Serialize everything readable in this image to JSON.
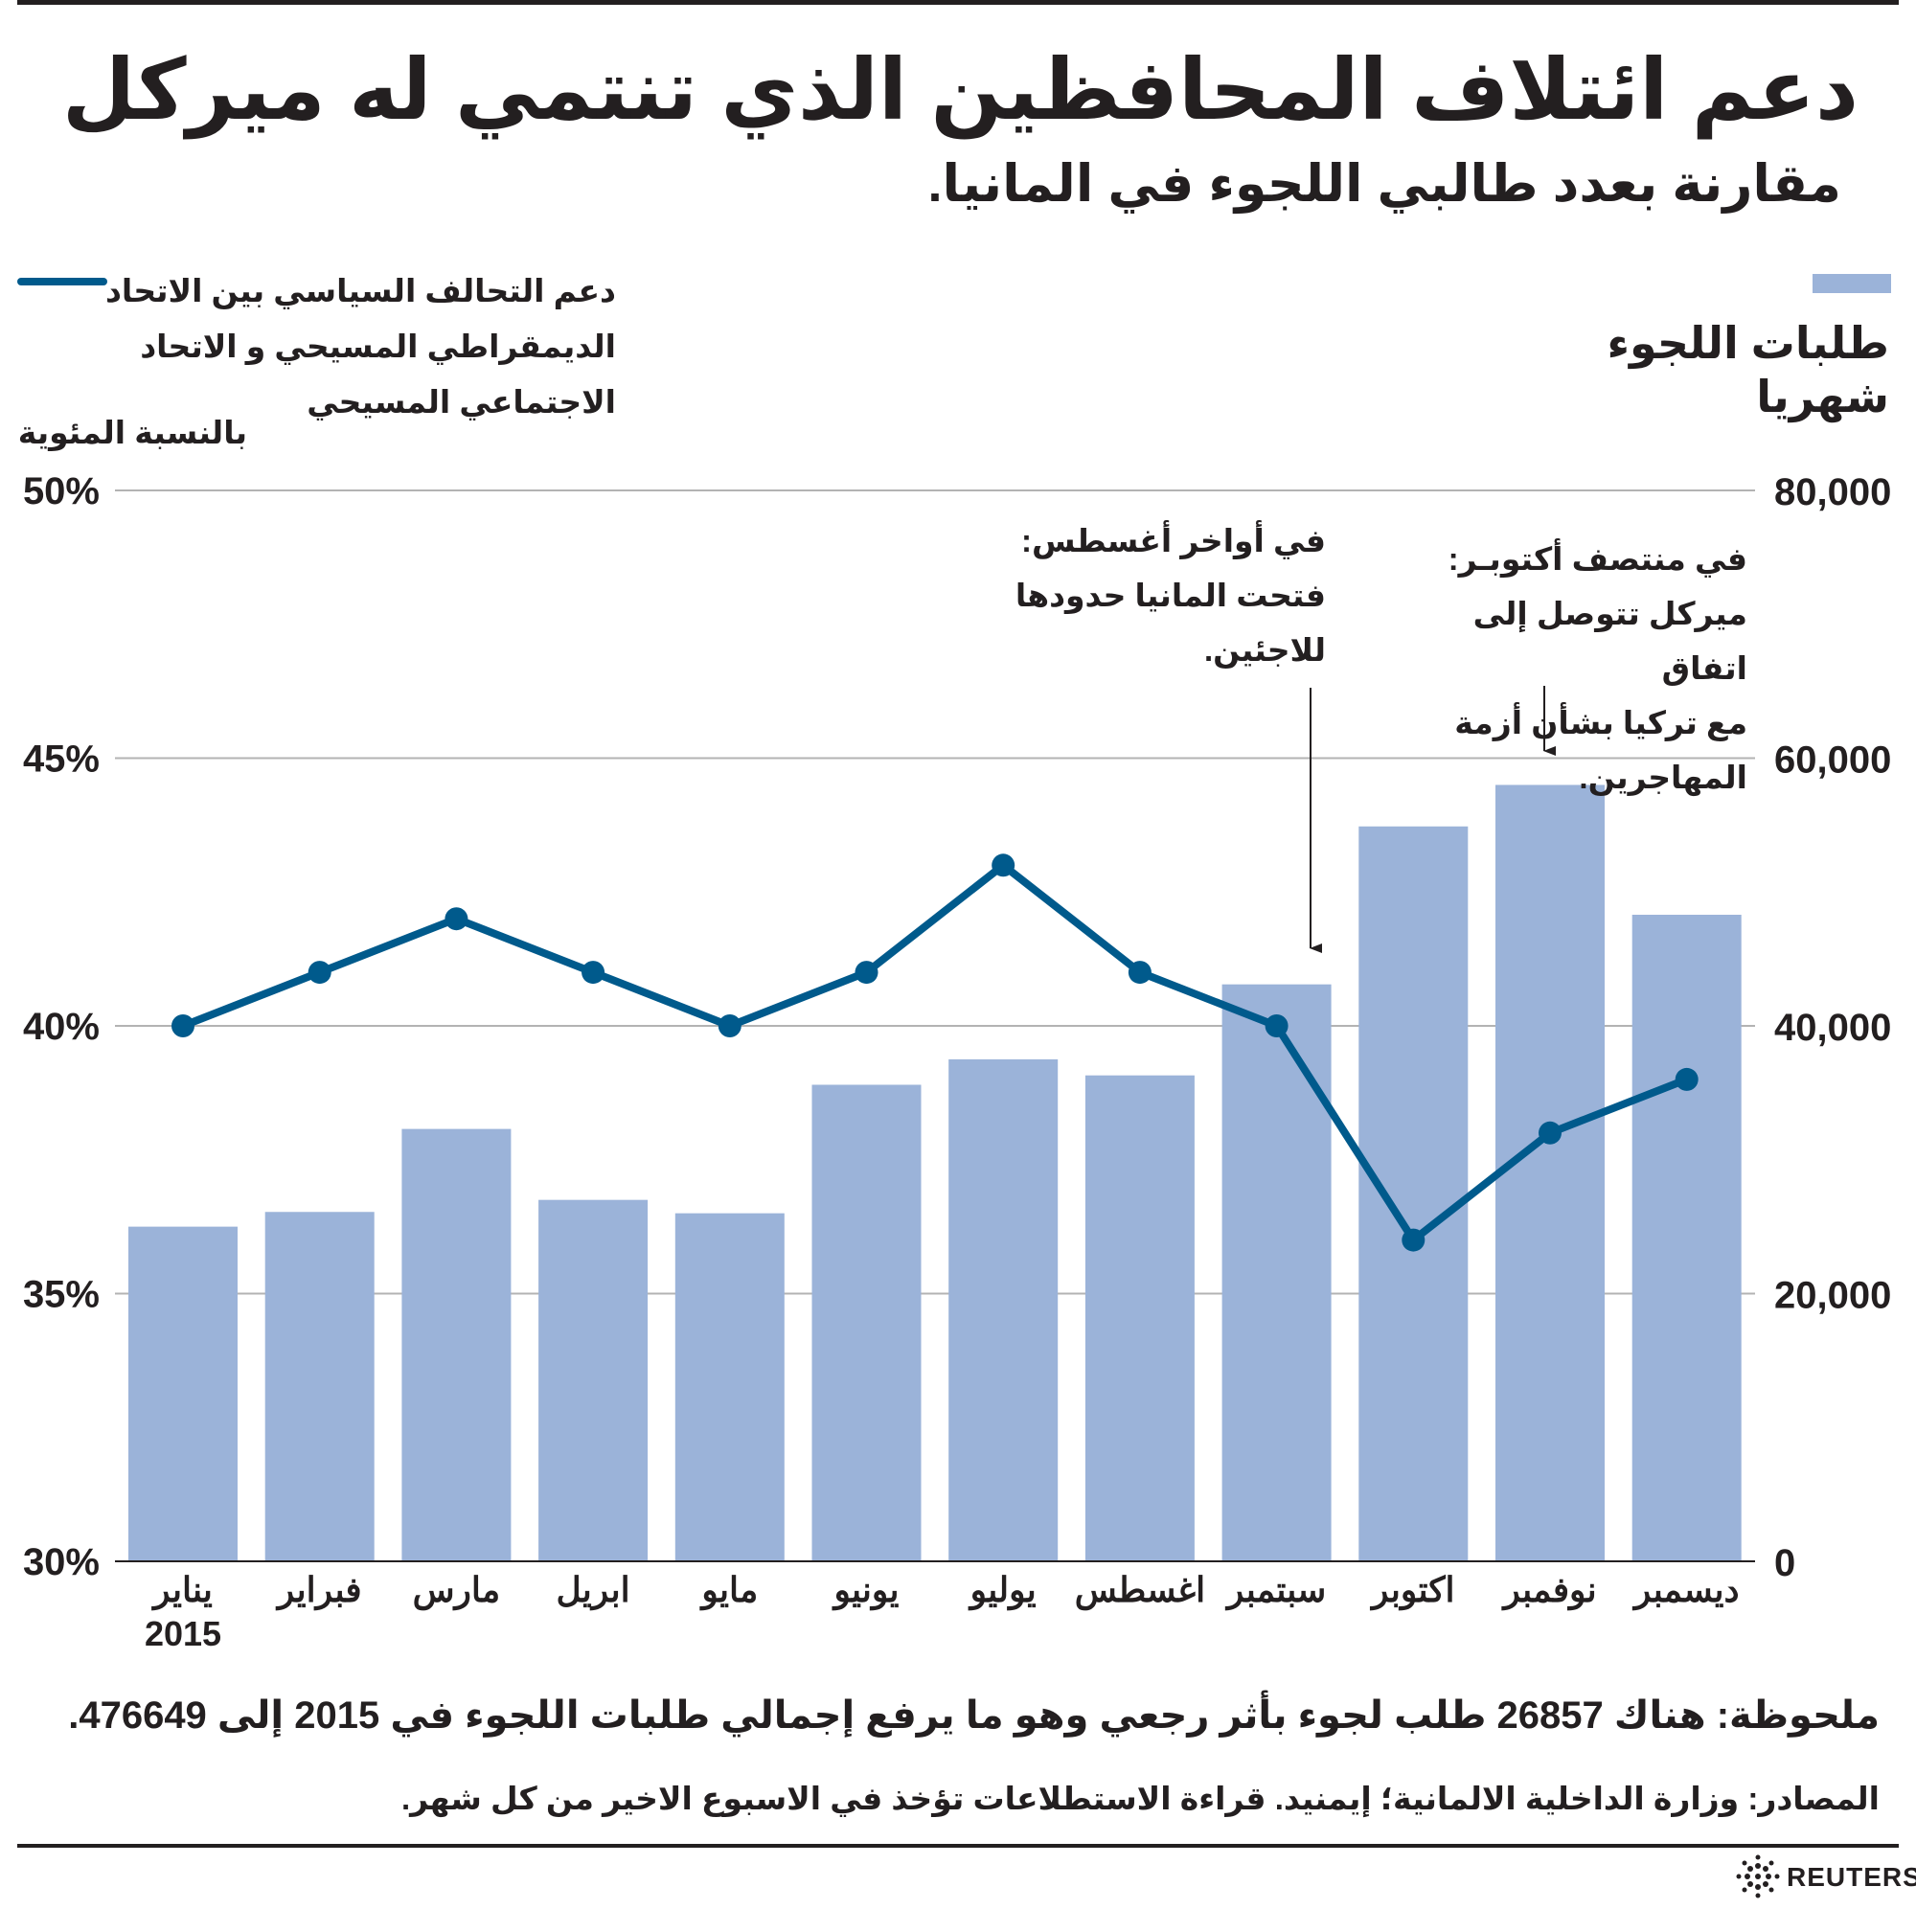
{
  "title": "دعم ائتلاف المحافظين الذي تنتمي له ميركل",
  "subtitle": "مقارنة بعدد طالبي اللجوء في المانيا.",
  "legend": {
    "bars_label": "طلبات اللجوء شهريا",
    "line_label": "دعم التحالف السياسي بين الاتحاد الديمقراطي المسيحي و الاتحاد الاجتماعي المسيحي",
    "left_unit": "بالنسبة المئوية"
  },
  "annotations": {
    "august": "في أواخر أغسطس:\nفتحت المانيا حدودها\nللاجئين.",
    "october": "في منتصف أكتوبـر:\nميركل تتوصل إلى اتفاق\nمع تركيا بشأن أزمة\nالمهاجرين."
  },
  "note": "ملحوظة: هناك 26857 طلب لجوء بأثر رجعي وهو ما يرفع إجمالي طلبات اللجوء في 2015 إلى 476649.",
  "sources": "المصادر: وزارة الداخلية الالمانية؛ إيمنيد. قراءة الاستطلاعات تؤخذ في الاسبوع الاخير من كل شهر.",
  "brand": "REUTERS",
  "colors": {
    "bar": "#9bb3d9",
    "line": "#005a8c",
    "grid": "#b3b3b3",
    "text": "#231f20"
  },
  "chart_data": {
    "type": "bar",
    "categories": [
      "يناير",
      "فبراير",
      "مارس",
      "ابريل",
      "مايو",
      "يونيو",
      "يوليو",
      "اغسطس",
      "سبتمبر",
      "اكتوبر",
      "نوفمبر",
      "ديسمبر"
    ],
    "year_label": "2015",
    "left_axis": {
      "ticks": [
        "30%",
        "35%",
        "40%",
        "45%",
        "50%"
      ],
      "range": [
        30,
        50
      ]
    },
    "right_axis": {
      "ticks": [
        "0",
        "20,000",
        "40,000",
        "60,000",
        "80,000"
      ],
      "range": [
        0,
        80000
      ]
    },
    "series": [
      {
        "type": "bar",
        "axis": "right",
        "values": [
          25000,
          26100,
          32300,
          27000,
          26000,
          35600,
          37500,
          36300,
          43100,
          54900,
          58000,
          48300
        ]
      },
      {
        "type": "line",
        "axis": "left",
        "values": [
          40,
          41,
          42,
          41,
          40,
          41,
          43,
          41,
          40,
          36,
          38,
          39
        ]
      }
    ]
  }
}
